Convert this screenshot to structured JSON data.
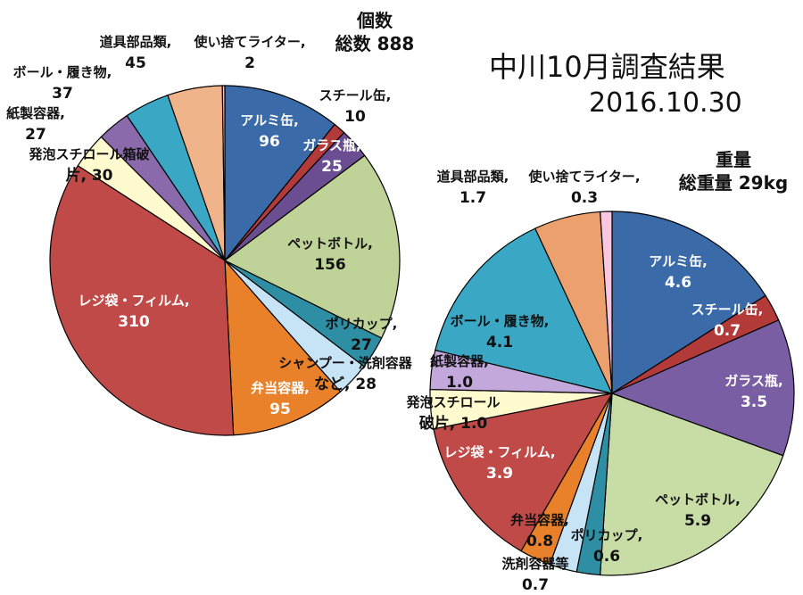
{
  "header": {
    "title": "中川10月調査結果",
    "date": "2016.10.30"
  },
  "chart_data": [
    {
      "type": "pie",
      "title": "個数",
      "subtitle": "総数 888",
      "series": [
        {
          "labels": [
            "アルミ缶",
            "スチール缶",
            "ガラス瓶",
            "ペットボトル",
            "ポリカップ",
            "シャンプー・洗剤容器など",
            "弁当容器",
            "レジ袋・フィルム",
            "発泡スチロール箱破片",
            "紙製容器",
            "ボール・履き物",
            "道具部品類",
            "使い捨てライター"
          ],
          "values": [
            96,
            10,
            25,
            156,
            27,
            28,
            95,
            310,
            30,
            27,
            37,
            45,
            2
          ]
        }
      ],
      "colors": [
        "#3b6aa8",
        "#b23a39",
        "#6b4e91",
        "#bfd398",
        "#2e8ea3",
        "#c6e4f6",
        "#e8812a",
        "#c04a48",
        "#fffbcf",
        "#8a6aaa",
        "#3aa7c4",
        "#f0b48a",
        "#f5bfd6"
      ],
      "labels_display": [
        {
          "name": "アルミ缶,",
          "value": "96"
        },
        {
          "name": "スチール缶,",
          "value": "10"
        },
        {
          "name": "ガラス瓶,",
          "value": "25"
        },
        {
          "name": "ペットボトル,",
          "value": "156"
        },
        {
          "name": "ポリカップ,",
          "value": "27"
        },
        {
          "name": "シャンプー・洗剤容器",
          "value": "など, 28"
        },
        {
          "name": "弁当容器,",
          "value": "95"
        },
        {
          "name": "レジ袋・フィルム,",
          "value": "310"
        },
        {
          "name": "発泡スチロール箱破",
          "value": "片, 30"
        },
        {
          "name": "紙製容器,",
          "value": "27"
        },
        {
          "name": "ボール・履き物,",
          "value": "37"
        },
        {
          "name": "道具部品類,",
          "value": "45"
        },
        {
          "name": "使い捨てライター,",
          "value": "2"
        }
      ]
    },
    {
      "type": "pie",
      "title": "重量",
      "subtitle": "総重量 29kg",
      "series": [
        {
          "labels": [
            "アルミ缶",
            "スチール缶",
            "ガラス瓶",
            "ペットボトル",
            "ポリカップ",
            "洗剤容器等",
            "弁当容器",
            "レジ袋・フィルム",
            "発泡スチロール破片",
            "紙製容器",
            "ボール・履き物",
            "道具部品類",
            "使い捨てライター"
          ],
          "values": [
            4.6,
            0.7,
            3.5,
            5.9,
            0.6,
            0.7,
            0.8,
            3.9,
            1.0,
            1.0,
            4.1,
            1.7,
            0.3
          ]
        }
      ],
      "colors": [
        "#3b6aa8",
        "#b23a39",
        "#7a5ea4",
        "#c8dca6",
        "#2e8ea3",
        "#c6e4f6",
        "#e8812a",
        "#c04a48",
        "#fffbcf",
        "#c3a8dc",
        "#3aa7c4",
        "#eba06e",
        "#f9c8e0"
      ],
      "labels_display": [
        {
          "name": "アルミ缶,",
          "value": "4.6"
        },
        {
          "name": "スチール缶,",
          "value": "0.7"
        },
        {
          "name": "ガラス瓶,",
          "value": "3.5"
        },
        {
          "name": "ペットボトル,",
          "value": "5.9"
        },
        {
          "name": "ポリカップ,",
          "value": "0.6"
        },
        {
          "name": "洗剤容器等",
          "value": "0.7"
        },
        {
          "name": "弁当容器,",
          "value": "0.8"
        },
        {
          "name": "レジ袋・フィルム,",
          "value": "3.9"
        },
        {
          "name": "発泡スチロール",
          "value": "破片, 1.0"
        },
        {
          "name": "紙製容器,",
          "value": "1.0"
        },
        {
          "name": "ボール・履き物,",
          "value": "4.1"
        },
        {
          "name": "道具部品類,",
          "value": "1.7"
        },
        {
          "name": "使い捨てライター,",
          "value": "0.3"
        }
      ]
    }
  ]
}
